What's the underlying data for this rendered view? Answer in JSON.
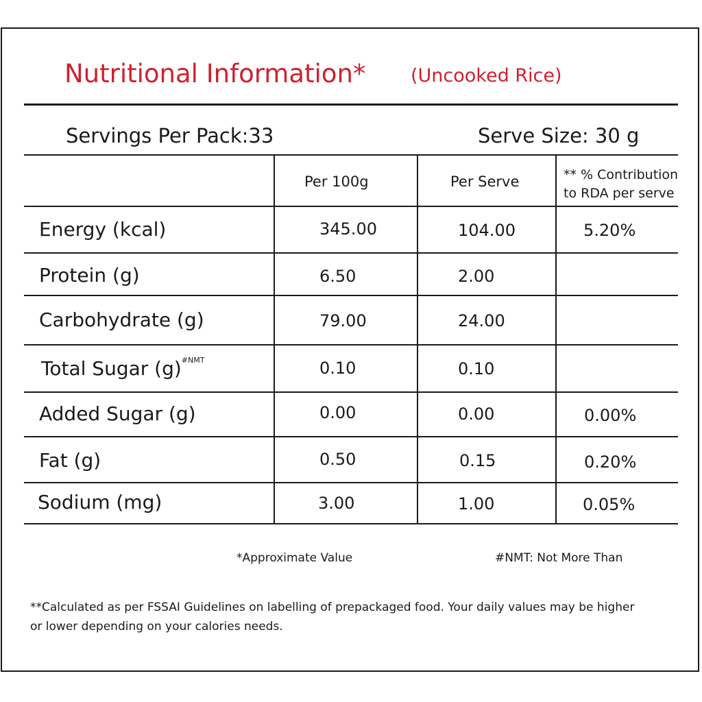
{
  "title": "Nutritional Information*",
  "subtitle": "(Uncooked Rice)",
  "servings_per_pack": "Servings Per Pack:33",
  "serve_size": "Serve Size: 30 g",
  "columns": {
    "per_100g": "Per 100g",
    "per_serve": "Per Serve",
    "rda_line1": "** % Contribution",
    "rda_line2": "to RDA per serve"
  },
  "rows": [
    {
      "label": "Energy (kcal)",
      "per_100g": "345.00",
      "per_serve": "104.00",
      "rda": "5.20%"
    },
    {
      "label": "Protein (g)",
      "per_100g": "6.50",
      "per_serve": "2.00",
      "rda": ""
    },
    {
      "label": "Carbohydrate (g)",
      "per_100g": "79.00",
      "per_serve": "24.00",
      "rda": ""
    },
    {
      "label": "Total Sugar (g)",
      "label_sup": "#NMT",
      "per_100g": "0.10",
      "per_serve": "0.10",
      "rda": ""
    },
    {
      "label": "Added Sugar (g)",
      "per_100g": "0.00",
      "per_serve": "0.00",
      "rda": "0.00%"
    },
    {
      "label": "Fat (g)",
      "per_100g": "0.50",
      "per_serve": "0.15",
      "rda": "0.20%"
    },
    {
      "label": "Sodium (mg)",
      "per_100g": "3.00",
      "per_serve": "1.00",
      "rda": "0.05%"
    }
  ],
  "notes": {
    "approx": "*Approximate Value",
    "nmt": "#NMT: Not More Than"
  },
  "footnote": {
    "line1": "**Calculated as per FSSAI Guidelines on labelling of prepackaged food. Your daily values may be higher",
    "line2": "or lower depending on your calories needs."
  }
}
